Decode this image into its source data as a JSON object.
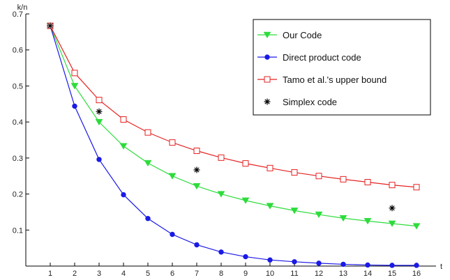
{
  "chart_data": {
    "type": "line",
    "xlabel": "t",
    "ylabel": "k/n",
    "xlim": [
      0,
      16.8
    ],
    "ylim": [
      0,
      0.7
    ],
    "xticks": [
      1,
      2,
      3,
      4,
      5,
      6,
      7,
      8,
      9,
      10,
      11,
      12,
      13,
      14,
      15,
      16
    ],
    "yticks": [
      0.1,
      0.2,
      0.3,
      0.4,
      0.5,
      0.6,
      0.7
    ],
    "grid": false,
    "legend_position": "top-right",
    "series": [
      {
        "name": "Our Code",
        "color": "#2ddc3c",
        "marker": "triangle-down-filled",
        "x": [
          1,
          2,
          3,
          4,
          5,
          6,
          7,
          8,
          9,
          10,
          11,
          12,
          13,
          14,
          15,
          16
        ],
        "y": [
          0.667,
          0.5,
          0.4,
          0.333,
          0.286,
          0.25,
          0.222,
          0.2,
          0.182,
          0.167,
          0.154,
          0.143,
          0.133,
          0.125,
          0.118,
          0.111
        ]
      },
      {
        "name": "Direct product code",
        "color": "#1a1ae6",
        "marker": "circle-filled",
        "x": [
          1,
          2,
          3,
          4,
          5,
          6,
          7,
          8,
          9,
          10,
          11,
          12,
          13,
          14,
          15,
          16
        ],
        "y": [
          0.667,
          0.444,
          0.296,
          0.198,
          0.132,
          0.088,
          0.059,
          0.039,
          0.026,
          0.017,
          0.012,
          0.008,
          0.005,
          0.003,
          0.002,
          0.002
        ]
      },
      {
        "name": "Tamo et al.'s upper bound",
        "color": "#e62222",
        "marker": "square-open",
        "x": [
          1,
          2,
          3,
          4,
          5,
          6,
          7,
          8,
          9,
          10,
          11,
          12,
          13,
          14,
          15,
          16
        ],
        "y": [
          0.667,
          0.536,
          0.461,
          0.407,
          0.371,
          0.343,
          0.32,
          0.301,
          0.285,
          0.272,
          0.26,
          0.25,
          0.241,
          0.233,
          0.225,
          0.219
        ]
      },
      {
        "name": "Simplex code",
        "color": "#000000",
        "marker": "asterisk",
        "line": false,
        "x": [
          1,
          3,
          7,
          15
        ],
        "y": [
          0.667,
          0.429,
          0.267,
          0.161
        ]
      }
    ]
  }
}
